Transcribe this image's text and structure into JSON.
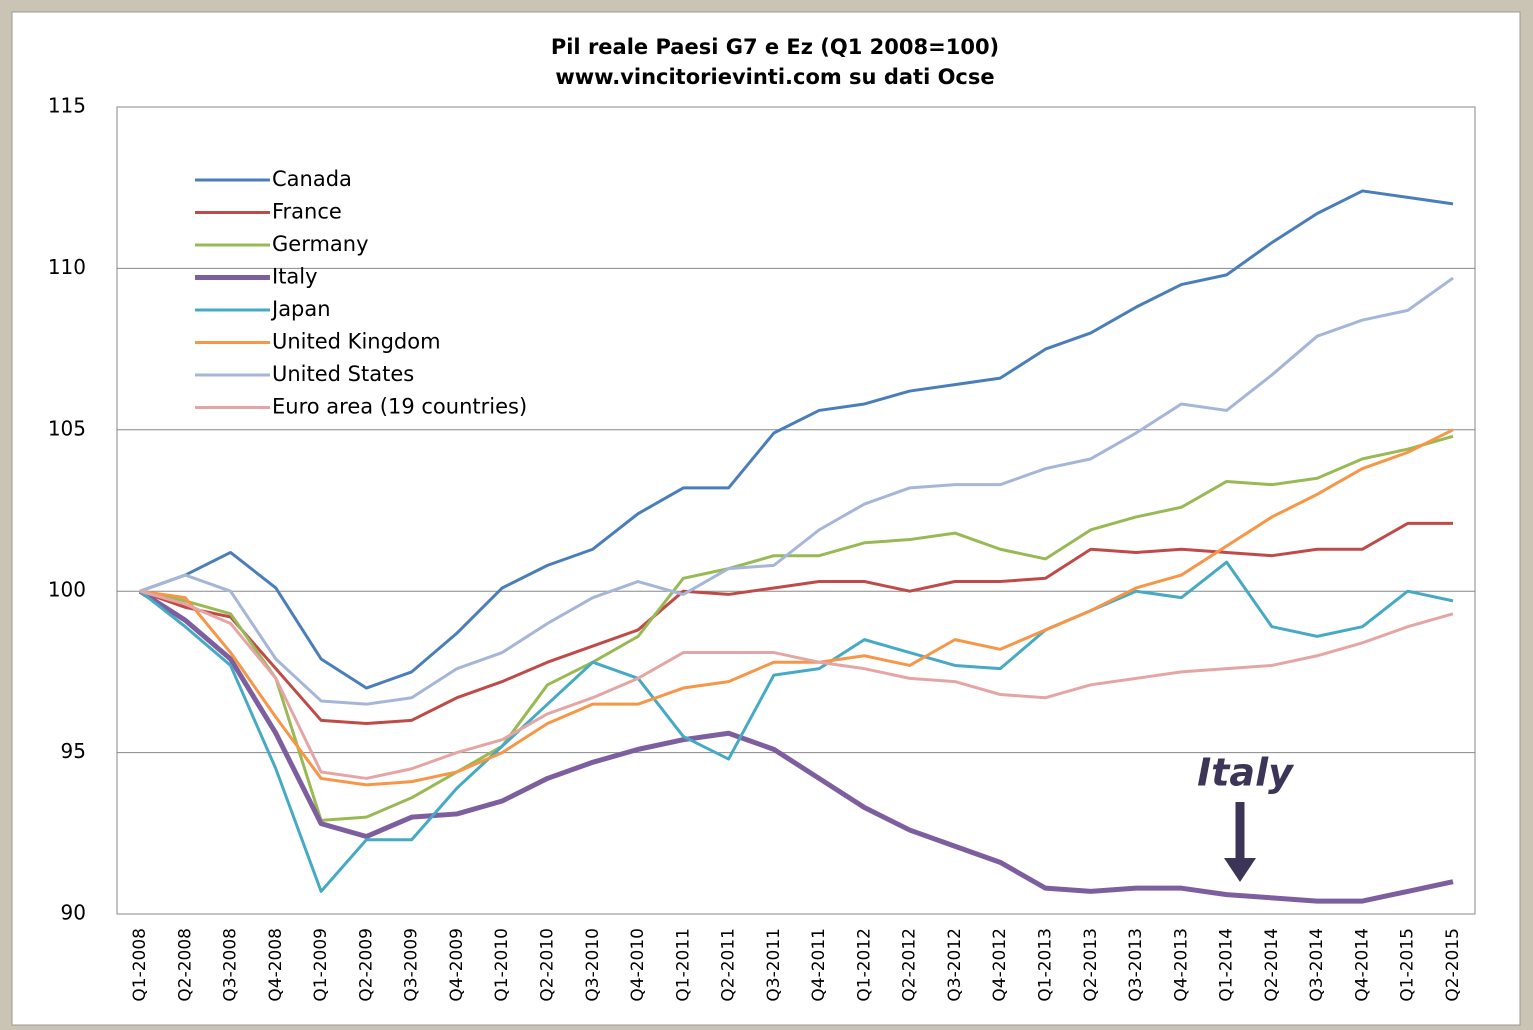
{
  "chart_data": {
    "type": "line",
    "title": "Pil reale Paesi G7 e Ez (Q1 2008=100)",
    "subtitle": "www.vincitorievinti.com su dati Ocse",
    "annotation": "Italy",
    "categories": [
      "Q1-2008",
      "Q2-2008",
      "Q3-2008",
      "Q4-2008",
      "Q1-2009",
      "Q2-2009",
      "Q3-2009",
      "Q4-2009",
      "Q1-2010",
      "Q2-2010",
      "Q3-2010",
      "Q4-2010",
      "Q1-2011",
      "Q2-2011",
      "Q3-2011",
      "Q4-2011",
      "Q1-2012",
      "Q2-2012",
      "Q3-2012",
      "Q4-2012",
      "Q1-2013",
      "Q2-2013",
      "Q3-2013",
      "Q4-2013",
      "Q1-2014",
      "Q2-2014",
      "Q3-2014",
      "Q4-2014",
      "Q1-2015",
      "Q2-2015"
    ],
    "ylim": [
      90,
      115
    ],
    "yticks": [
      90,
      95,
      100,
      105,
      110,
      115
    ],
    "grid": true,
    "legend": "upper left",
    "series": [
      {
        "name": "Canada",
        "color": "#4a7ebb",
        "values": [
          100,
          100.5,
          101.2,
          100.1,
          97.9,
          97.0,
          97.5,
          98.7,
          100.1,
          100.8,
          101.3,
          102.4,
          103.2,
          103.2,
          104.9,
          105.6,
          105.8,
          106.2,
          106.4,
          106.6,
          107.5,
          108.0,
          108.8,
          109.5,
          109.8,
          110.8,
          111.7,
          112.4,
          112.2,
          112.0
        ]
      },
      {
        "name": "France",
        "color": "#be4b48",
        "values": [
          100,
          99.5,
          99.2,
          97.6,
          96.0,
          95.9,
          96.0,
          96.7,
          97.2,
          97.8,
          98.3,
          98.8,
          100.0,
          99.9,
          100.1,
          100.3,
          100.3,
          100.0,
          100.3,
          100.3,
          100.4,
          101.3,
          101.2,
          101.3,
          101.2,
          101.1,
          101.3,
          101.3,
          102.1,
          102.1
        ]
      },
      {
        "name": "Germany",
        "color": "#98b954",
        "values": [
          100,
          99.7,
          99.3,
          97.3,
          92.9,
          93.0,
          93.6,
          94.4,
          95.2,
          97.1,
          97.8,
          98.6,
          100.4,
          100.7,
          101.1,
          101.1,
          101.5,
          101.6,
          101.8,
          101.3,
          101.0,
          101.9,
          102.3,
          102.6,
          103.4,
          103.3,
          103.5,
          104.1,
          104.4,
          104.8
        ]
      },
      {
        "name": "Italy",
        "color": "#7d5fa0",
        "values": [
          100,
          99.1,
          97.9,
          95.6,
          92.8,
          92.4,
          93.0,
          93.1,
          93.5,
          94.2,
          94.7,
          95.1,
          95.4,
          95.6,
          95.1,
          94.2,
          93.3,
          92.6,
          92.1,
          91.6,
          90.8,
          90.7,
          90.8,
          90.8,
          90.6,
          90.5,
          90.4,
          90.4,
          90.7,
          91.0
        ]
      },
      {
        "name": "Japan",
        "color": "#46aac5",
        "values": [
          100,
          98.9,
          97.7,
          94.5,
          90.7,
          92.3,
          92.3,
          93.9,
          95.2,
          96.5,
          97.8,
          97.3,
          95.5,
          94.8,
          97.4,
          97.6,
          98.5,
          98.1,
          97.7,
          97.6,
          98.8,
          99.4,
          100.0,
          99.8,
          100.9,
          98.9,
          98.6,
          98.9,
          100.0,
          99.7
        ]
      },
      {
        "name": "United Kingdom",
        "color": "#f79646",
        "values": [
          100,
          99.8,
          98.1,
          96.1,
          94.2,
          94.0,
          94.1,
          94.4,
          95.0,
          95.9,
          96.5,
          96.5,
          97.0,
          97.2,
          97.8,
          97.8,
          98.0,
          97.7,
          98.5,
          98.2,
          98.8,
          99.4,
          100.1,
          100.5,
          101.4,
          102.3,
          103.0,
          103.8,
          104.3,
          105.0
        ]
      },
      {
        "name": "United States",
        "color": "#a5b6d9",
        "values": [
          100,
          100.5,
          100.0,
          97.9,
          96.6,
          96.5,
          96.7,
          97.6,
          98.1,
          99.0,
          99.8,
          100.3,
          99.9,
          100.7,
          100.8,
          101.9,
          102.7,
          103.2,
          103.3,
          103.3,
          103.8,
          104.1,
          104.9,
          105.8,
          105.6,
          106.7,
          107.9,
          108.4,
          108.7,
          109.7
        ]
      },
      {
        "name": "Euro area (19 countries)",
        "color": "#e6a5a5",
        "values": [
          100,
          99.6,
          99.0,
          97.3,
          94.4,
          94.2,
          94.5,
          95.0,
          95.4,
          96.2,
          96.7,
          97.3,
          98.1,
          98.1,
          98.1,
          97.8,
          97.6,
          97.3,
          97.2,
          96.8,
          96.7,
          97.1,
          97.3,
          97.5,
          97.6,
          97.7,
          98.0,
          98.4,
          98.9,
          99.3
        ]
      }
    ]
  }
}
